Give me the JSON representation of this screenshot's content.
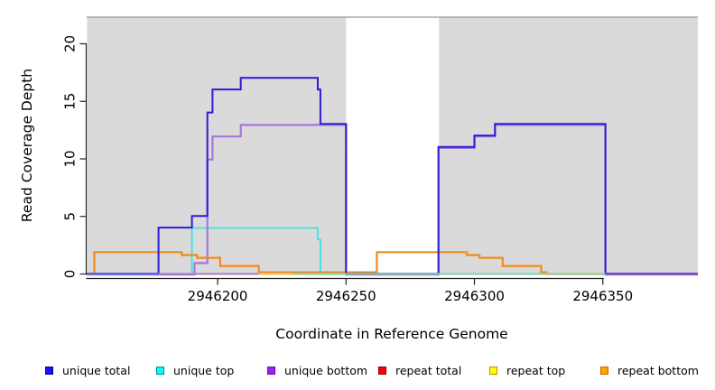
{
  "chart_data": {
    "type": "line",
    "subtype": "step-coverage",
    "title": "",
    "xlabel": "Coordinate in Reference Genome",
    "ylabel": "Read Coverage Depth",
    "x_range": [
      2946149,
      2946387
    ],
    "ylim": [
      0,
      22
    ],
    "x_ticks": [
      2946200,
      2946250,
      2946300,
      2946350
    ],
    "y_ticks": [
      0,
      5,
      10,
      15,
      20
    ],
    "grid": false,
    "legend_position": "bottom",
    "plot_background": "#FFFFFF",
    "shaded_regions": [
      {
        "name": "alignment-block-1",
        "from": 2946149,
        "to": 2946250,
        "color": "#DADADA"
      },
      {
        "name": "alignment-block-2",
        "from": 2946286,
        "to": 2946387,
        "color": "#DADADA"
      }
    ],
    "gap_region": {
      "from": 2946250,
      "to": 2946286
    },
    "top_boundary_line": {
      "y_value": 22.3,
      "color": "#999999"
    },
    "series": [
      {
        "name": "unique total",
        "color": "#0000FF",
        "line_color": "#2A1CD6",
        "width": 2.0,
        "dy": -0.4,
        "z": 6,
        "points": [
          [
            2946149,
            0
          ],
          [
            2946177,
            4
          ],
          [
            2946190,
            5
          ],
          [
            2946196,
            14
          ],
          [
            2946198,
            16
          ],
          [
            2946209,
            17
          ],
          [
            2946239,
            16
          ],
          [
            2946240,
            13
          ],
          [
            2946250,
            0
          ],
          [
            2946286,
            11
          ],
          [
            2946300,
            12
          ],
          [
            2946308,
            13
          ],
          [
            2946351,
            0
          ],
          [
            2946387,
            0
          ]
        ]
      },
      {
        "name": "unique top",
        "color": "#00FFFF",
        "line_color": "#3FE0E2",
        "width": 1.8,
        "dy": 0,
        "z": 3,
        "points": [
          [
            2946149,
            0
          ],
          [
            2946190,
            4
          ],
          [
            2946239,
            3
          ],
          [
            2946240,
            0
          ],
          [
            2946387,
            0
          ]
        ]
      },
      {
        "name": "unique bottom",
        "color": "#A020F0",
        "line_color": "#A777DC",
        "width": 2.2,
        "dy": 0.7,
        "z": 4,
        "points": [
          [
            2946149,
            0
          ],
          [
            2946191,
            1
          ],
          [
            2946196,
            10
          ],
          [
            2946198,
            12
          ],
          [
            2946209,
            13
          ],
          [
            2946250,
            0
          ],
          [
            2946286,
            11
          ],
          [
            2946300,
            12
          ],
          [
            2946308,
            13
          ],
          [
            2946351,
            0
          ],
          [
            2946387,
            0
          ]
        ]
      },
      {
        "name": "repeat total",
        "color": "#FF0000",
        "line_color": "#E02020",
        "width": 1.8,
        "dy": 0,
        "z": 1,
        "points": [
          [
            2946149,
            0
          ],
          [
            2946387,
            0
          ]
        ]
      },
      {
        "name": "repeat top",
        "color": "#FFFF00",
        "line_color": "#F0D040",
        "width": 1.8,
        "dy": 0,
        "z": 2,
        "points": [
          [
            2946149,
            0
          ],
          [
            2946387,
            0
          ]
        ]
      },
      {
        "name": "repeat bottom",
        "color": "#FFA500",
        "line_color": "#F08A1E",
        "width": 2.2,
        "dy": 0,
        "z": 5,
        "points": [
          [
            2946149,
            0
          ],
          [
            2946152,
            1.9
          ],
          [
            2946186,
            1.65
          ],
          [
            2946192,
            1.4
          ],
          [
            2946201,
            0.7
          ],
          [
            2946216,
            0.15
          ],
          [
            2946262,
            1.9
          ],
          [
            2946297,
            1.65
          ],
          [
            2946302,
            1.4
          ],
          [
            2946311,
            0.7
          ],
          [
            2946326,
            0.15
          ],
          [
            2946328,
            0
          ],
          [
            2946387,
            0
          ]
        ]
      }
    ],
    "zero_line_segments": [
      {
        "from": 2946149,
        "to": 2946177,
        "color": "#5B6BF0"
      },
      {
        "from": 2946177,
        "to": 2946216,
        "color": "#A77BDC"
      },
      {
        "from": 2946216,
        "to": 2946229,
        "color": "#F6C473"
      },
      {
        "from": 2946229,
        "to": 2946351,
        "color": "#80D8A8"
      },
      {
        "from": 2946351,
        "to": 2946387,
        "color": "#6A46EC"
      }
    ]
  },
  "legend": {
    "items": [
      {
        "label": "unique total",
        "fill": "#1414FF",
        "border": "#00009B"
      },
      {
        "label": "unique top",
        "fill": "#00FFFF",
        "border": "#008B8B"
      },
      {
        "label": "unique bottom",
        "fill": "#A020F0",
        "border": "#6A0DAD"
      },
      {
        "label": "repeat total",
        "fill": "#FF0000",
        "border": "#8B0000"
      },
      {
        "label": "repeat top",
        "fill": "#FFFF00",
        "border": "#C88700"
      },
      {
        "label": "repeat bottom",
        "fill": "#FFA500",
        "border": "#C86400"
      }
    ]
  }
}
